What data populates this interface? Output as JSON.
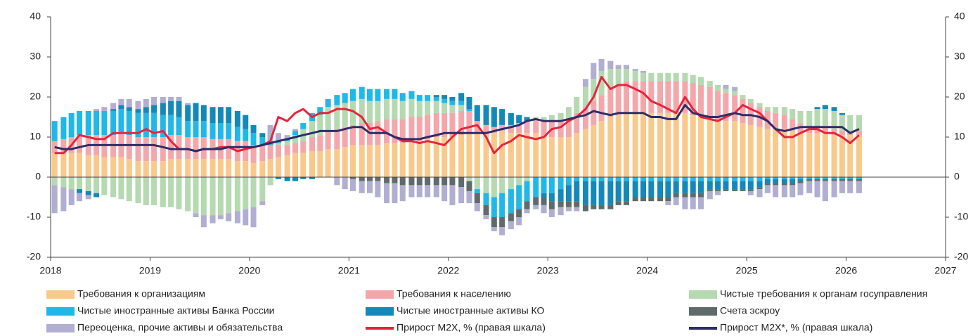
{
  "chart_data": {
    "type": "bar",
    "x": [
      2018.04,
      2018.13,
      2018.21,
      2018.29,
      2018.38,
      2018.46,
      2018.54,
      2018.63,
      2018.71,
      2018.79,
      2018.88,
      2018.96,
      2019.04,
      2019.13,
      2019.21,
      2019.29,
      2019.38,
      2019.46,
      2019.54,
      2019.63,
      2019.71,
      2019.79,
      2019.88,
      2019.96,
      2020.04,
      2020.13,
      2020.21,
      2020.29,
      2020.38,
      2020.46,
      2020.54,
      2020.63,
      2020.71,
      2020.79,
      2020.88,
      2020.96,
      2021.04,
      2021.13,
      2021.21,
      2021.29,
      2021.38,
      2021.46,
      2021.54,
      2021.63,
      2021.71,
      2021.79,
      2021.88,
      2021.96,
      2022.04,
      2022.13,
      2022.21,
      2022.29,
      2022.38,
      2022.46,
      2022.54,
      2022.63,
      2022.71,
      2022.79,
      2022.88,
      2022.96,
      2023.04,
      2023.13,
      2023.21,
      2023.29,
      2023.38,
      2023.46,
      2023.54,
      2023.63,
      2023.71,
      2023.79,
      2023.88,
      2023.96,
      2024.04,
      2024.13,
      2024.21,
      2024.29,
      2024.38,
      2024.46,
      2024.54,
      2024.63,
      2024.71,
      2024.79,
      2024.88,
      2024.96,
      2025.04,
      2025.13,
      2025.21,
      2025.29,
      2025.38,
      2025.46,
      2025.54,
      2025.63,
      2025.71,
      2025.79,
      2025.88,
      2025.96,
      2026.04,
      2026.13
    ],
    "xlim": [
      2018,
      2027
    ],
    "xticks": [
      2018,
      2019,
      2020,
      2021,
      2022,
      2023,
      2024,
      2025,
      2026,
      2027
    ],
    "ylim": [
      -20,
      40
    ],
    "yticks": [
      -20,
      -10,
      0,
      10,
      20,
      30,
      40
    ],
    "y2lim": [
      -20,
      40
    ],
    "y2ticks": [
      -20,
      -10,
      0,
      10,
      20,
      30,
      40
    ],
    "series": [
      {
        "name": "Требования к организациям",
        "type": "bar",
        "color": "#f9c98b",
        "values": [
          6,
          6,
          6,
          6,
          5.5,
          5.5,
          5,
          5,
          5,
          4.5,
          4,
          4,
          4,
          4,
          4.5,
          4.5,
          4.5,
          4.5,
          4.5,
          4.5,
          4.5,
          4.5,
          4,
          4,
          3.5,
          4,
          4.5,
          5,
          5.5,
          6,
          6,
          6.5,
          6.5,
          7,
          7,
          7.5,
          8,
          8,
          8,
          8,
          8.5,
          8.5,
          8.5,
          9,
          9,
          9.5,
          10,
          10,
          10,
          10.5,
          11,
          11,
          11,
          11,
          11.5,
          11,
          11,
          11,
          11,
          10,
          10,
          10,
          10,
          11,
          12,
          13,
          14,
          15,
          15.5,
          16,
          16,
          16,
          16,
          16,
          16,
          16,
          16,
          15.5,
          15,
          14.5,
          14,
          14,
          14,
          13.5,
          13,
          12.5,
          12,
          12,
          12,
          11.5,
          11,
          11,
          11,
          11,
          10.5,
          10.5,
          10.5,
          10.5
        ]
      },
      {
        "name": "Требования к населению",
        "type": "bar",
        "color": "#f4a7ab",
        "values": [
          3,
          3.5,
          4,
          4.5,
          5,
          5,
          5.5,
          5.5,
          6,
          6,
          6,
          6,
          6,
          6,
          6,
          6,
          5.5,
          5.5,
          5.5,
          5,
          5,
          5,
          5,
          5,
          4.5,
          4,
          3.5,
          3,
          2.5,
          2.5,
          3,
          3.5,
          4,
          4.5,
          5,
          5,
          5,
          5.5,
          5.5,
          6,
          6,
          6,
          6,
          6,
          6,
          6,
          6,
          6,
          6,
          6,
          5.5,
          3,
          2,
          1.5,
          1.5,
          2,
          2.5,
          3,
          3.5,
          4,
          4,
          4,
          4.5,
          5,
          5.5,
          6,
          6.5,
          7,
          7.5,
          8,
          8,
          8,
          8,
          8,
          8,
          8,
          8,
          8,
          8,
          8,
          7.5,
          7,
          6.5,
          6,
          5.5,
          5,
          4.5,
          4,
          3.5,
          3,
          2.5,
          2,
          2,
          1.5,
          1.5,
          1,
          1,
          1
        ]
      },
      {
        "name": "Чистые требования к органам госуправления",
        "type": "bar",
        "color": "#b5d9b0",
        "values": [
          -2,
          -2.5,
          -3,
          -3,
          -3.5,
          -4,
          -4.5,
          -5,
          -5.5,
          -6,
          -6.5,
          -7,
          -7,
          -7.5,
          -7.5,
          -8,
          -8.5,
          -9,
          -9.5,
          -9.5,
          -9.5,
          -9,
          -8.5,
          -8,
          -7.5,
          -6,
          -2,
          0.5,
          1,
          2,
          3,
          4,
          5,
          6,
          6,
          6,
          6,
          6,
          5.5,
          5,
          5,
          5,
          4.5,
          4.5,
          4,
          3.5,
          3,
          2.5,
          2,
          1.5,
          -1,
          -3,
          -4,
          -5,
          -4,
          -3,
          -2,
          -1,
          0.5,
          1,
          1.5,
          2,
          3,
          4,
          5,
          5.5,
          6,
          5,
          4,
          3,
          2.5,
          2,
          2,
          2,
          2,
          2,
          2,
          2,
          2,
          1.5,
          1.5,
          1,
          1,
          1,
          1,
          1,
          1,
          1.5,
          2,
          2.5,
          3,
          3.5,
          4,
          4.5,
          4.5,
          4,
          4,
          4
        ]
      },
      {
        "name": "Чистые иностранные активы Банка России",
        "type": "bar",
        "color": "#1fb8e8",
        "values": [
          5,
          5.5,
          6,
          6,
          6,
          6,
          6,
          6,
          6,
          6,
          6,
          6,
          6,
          5.5,
          5,
          4.5,
          4,
          4,
          4,
          4,
          4,
          4,
          3.5,
          3,
          3,
          2,
          1,
          0.5,
          0.5,
          1,
          1.5,
          2,
          2,
          2,
          2.5,
          2.5,
          3,
          3,
          3,
          3,
          2.5,
          2.5,
          2,
          2,
          1.5,
          1.5,
          1,
          1,
          1,
          1,
          0.5,
          -1,
          -3,
          -5,
          -6,
          -6,
          -6,
          -5,
          -5,
          -4,
          -4,
          -3,
          -2,
          -1,
          -1,
          -1,
          -1,
          -1,
          -1,
          -1,
          -1,
          -1,
          -1,
          -1,
          -1,
          -1,
          -1,
          -1,
          -1,
          -1,
          -1,
          -1,
          -1,
          -1,
          -1,
          -1,
          -0.5,
          -0.5,
          -0.5,
          -0.5,
          -0.5,
          -0.5,
          -0.5,
          -0.5,
          -0.5,
          -0.5,
          -0.5,
          -0.5
        ]
      },
      {
        "name": "Чистые иностранные активы КО",
        "type": "bar",
        "color": "#1488b8",
        "values": [
          0,
          0,
          0,
          -1,
          -1,
          -1,
          0,
          0.5,
          1,
          1,
          1,
          1.5,
          2,
          3,
          3.5,
          4,
          4,
          4.5,
          4,
          4,
          4,
          4,
          4,
          3.5,
          2,
          1,
          0,
          -0.5,
          -1,
          -1,
          -0.5,
          -0.5,
          0,
          0,
          0,
          0,
          0,
          0,
          0,
          0,
          0,
          0,
          0,
          0,
          0,
          0,
          0.5,
          1,
          1,
          2,
          3,
          4,
          5,
          5,
          4,
          3,
          2,
          1,
          0,
          -1,
          -2,
          -3,
          -4,
          -5,
          -6,
          -6,
          -6,
          -6,
          -5,
          -5,
          -4,
          -4,
          -4,
          -4,
          -4,
          -3,
          -3,
          -3,
          -3,
          -2,
          -2,
          -2,
          -2,
          -2,
          -2,
          -1.5,
          -1,
          -1,
          -1,
          -1,
          -0.5,
          0,
          0.5,
          1,
          1,
          0.5,
          0,
          0
        ]
      },
      {
        "name": "Счета эскроу",
        "type": "bar",
        "color": "#5f6b6b",
        "values": [
          0,
          0,
          0,
          0,
          0,
          0,
          0,
          0,
          0,
          0,
          0,
          0,
          0,
          0,
          0,
          0,
          0,
          0,
          0,
          0,
          0,
          0,
          0,
          0,
          0,
          0,
          0,
          0,
          0,
          0,
          0,
          0,
          0,
          0,
          0,
          0,
          -0.5,
          -1,
          -1,
          -1,
          -1.5,
          -1.5,
          -2,
          -2,
          -2,
          -2,
          -2,
          -2,
          -2,
          -2.5,
          -2.5,
          -2.5,
          -2.5,
          -2.5,
          -2.5,
          -2,
          -2,
          -2,
          -2,
          -2,
          -2,
          -1.5,
          -1.5,
          -1.5,
          -1.5,
          -1,
          -1,
          -1,
          -1,
          -1,
          -1,
          -1,
          -1,
          -1,
          -1,
          -1,
          -1,
          -1,
          -1,
          -0.5,
          -0.5,
          -0.5,
          -0.5,
          -0.5,
          -0.5,
          -0.5,
          -0.5,
          -0.5,
          -0.5,
          -0.5,
          -0.5,
          -0.5,
          -0.5,
          -0.5,
          -0.5,
          -0.5,
          -0.5,
          -0.5
        ]
      },
      {
        "name": "Переоценка, прочие активы и обязательства",
        "type": "bar",
        "color": "#b1aed2",
        "values": [
          -7,
          -6,
          -4,
          -2,
          -1,
          0.5,
          1,
          1.5,
          1.5,
          2,
          2,
          2,
          2,
          1.5,
          1,
          1,
          0.5,
          -1,
          -3,
          -2,
          -1,
          -2,
          -3,
          -4,
          -5,
          -1,
          4,
          2,
          1,
          0.5,
          0,
          0,
          0,
          0,
          -2,
          -3,
          -3,
          -3,
          -3,
          -4,
          -5,
          -5,
          -4,
          -3,
          -3,
          -3,
          -3,
          -4,
          -5,
          -4,
          -3,
          -2,
          -1,
          -1,
          -2,
          -2,
          -2,
          -1,
          -1,
          -2,
          -2,
          -2,
          -1,
          -1,
          2,
          4,
          3,
          2,
          1,
          1,
          0.5,
          0.5,
          0,
          0,
          -1,
          -2,
          -3,
          -3,
          -3,
          -2,
          -1,
          1,
          1,
          0,
          -1,
          -2,
          -2,
          -3,
          -3,
          -3,
          -3,
          -3,
          -4,
          -5,
          -4,
          -3,
          -3,
          -3
        ]
      },
      {
        "name": "Прирост М2Х, % (правая шкала)",
        "type": "line",
        "axis": "y2",
        "color": "#e8243c",
        "values": [
          6,
          6,
          8,
          10.5,
          10,
          9.5,
          9.5,
          11,
          11,
          11,
          11,
          12,
          11,
          11.5,
          9,
          7,
          7,
          6.5,
          7,
          7,
          7.5,
          7.5,
          6.5,
          7,
          7.5,
          8,
          9,
          15,
          14,
          16,
          17,
          15,
          16,
          16,
          17,
          17,
          16.5,
          15,
          12,
          12.5,
          11,
          10,
          9,
          9,
          8.5,
          9,
          8.5,
          8,
          10,
          12,
          12.5,
          13,
          10,
          6,
          8,
          9,
          10.5,
          10,
          9.5,
          10,
          12,
          12.5,
          14,
          15,
          17,
          20,
          25,
          22,
          23,
          23,
          22,
          21,
          19,
          18,
          17,
          16,
          20,
          17,
          15,
          14.5,
          14,
          15,
          16,
          18,
          17,
          16,
          14,
          12,
          10,
          10,
          11,
          12,
          12,
          11,
          11,
          10,
          8.5,
          10.5
        ]
      },
      {
        "name": "Прирост М2Х*, % (правая шкала)",
        "type": "line",
        "axis": "y2",
        "color": "#2d2d6b",
        "values": [
          7.5,
          7,
          7,
          7.5,
          8,
          8,
          8,
          8,
          8,
          8,
          8,
          8,
          8,
          7.5,
          7,
          7,
          7,
          6.5,
          7,
          7,
          7,
          7.5,
          7.5,
          7.5,
          7.5,
          8,
          8.5,
          9,
          9.5,
          10,
          10.5,
          11,
          11.5,
          11.5,
          11.5,
          12,
          12.5,
          12.5,
          11,
          11,
          11,
          10,
          9.5,
          9.5,
          9.5,
          10,
          10.5,
          11,
          11,
          11,
          11,
          11,
          11,
          11.5,
          12,
          12.5,
          13,
          14,
          14.5,
          14,
          14,
          14,
          14.5,
          15,
          15.5,
          16.5,
          16,
          15.5,
          16,
          16,
          16,
          16,
          15,
          15,
          14.5,
          14.5,
          18,
          16,
          15.5,
          15,
          15,
          15.5,
          16,
          15.5,
          15.5,
          15,
          14,
          12,
          11.5,
          12,
          12.5,
          12.5,
          12.5,
          12.5,
          12.5,
          12.5,
          11,
          12
        ]
      }
    ]
  }
}
